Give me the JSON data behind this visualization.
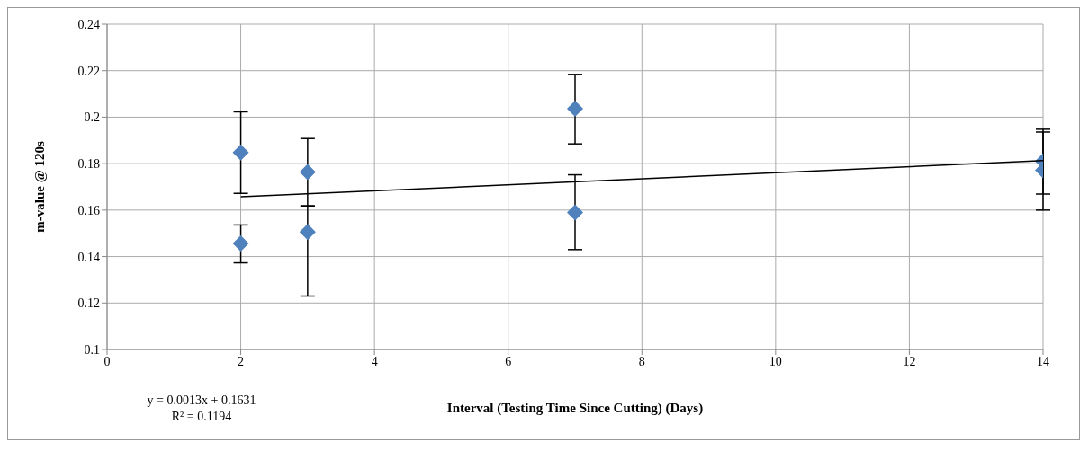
{
  "chart_data": {
    "type": "scatter",
    "xlabel": "Interval (Testing Time Since Cutting) (Days)",
    "ylabel": "m-value @ 120s",
    "series": [
      {
        "color": "#4f81bd",
        "x": [
          2,
          2,
          3,
          3,
          7,
          7,
          14,
          14
        ],
        "values": [
          0.1848,
          0.1456,
          0.1764,
          0.1506,
          0.2036,
          0.159,
          0.181,
          0.1772
        ],
        "errors": [
          [
            0.1672,
            0.2023
          ],
          [
            0.1373,
            0.1536
          ],
          [
            0.1618,
            0.1908
          ],
          [
            0.123,
            0.1618
          ],
          [
            0.1885,
            0.2184
          ],
          [
            0.143,
            0.1752
          ],
          [
            0.1669,
            0.1948
          ],
          [
            0.16,
            0.1936
          ]
        ],
        "marker": "diamond"
      },
      {
        "type": "line",
        "color": "#000000",
        "x": [
          2,
          14
        ],
        "values": [
          0.1657,
          0.1813
        ],
        "marker": "none"
      }
    ],
    "xlim": [
      0,
      14
    ],
    "xticks": [
      0,
      2,
      4,
      6,
      8,
      10,
      12,
      14
    ],
    "ylim": [
      0.1,
      0.24
    ],
    "yticks": [
      0.1,
      0.12,
      0.14,
      0.16,
      0.18,
      0.2,
      0.22,
      0.24
    ],
    "grid": true,
    "legend": false,
    "annotations": [
      "y = 0.0013x + 0.1631",
      "R² = 0.1194"
    ]
  }
}
